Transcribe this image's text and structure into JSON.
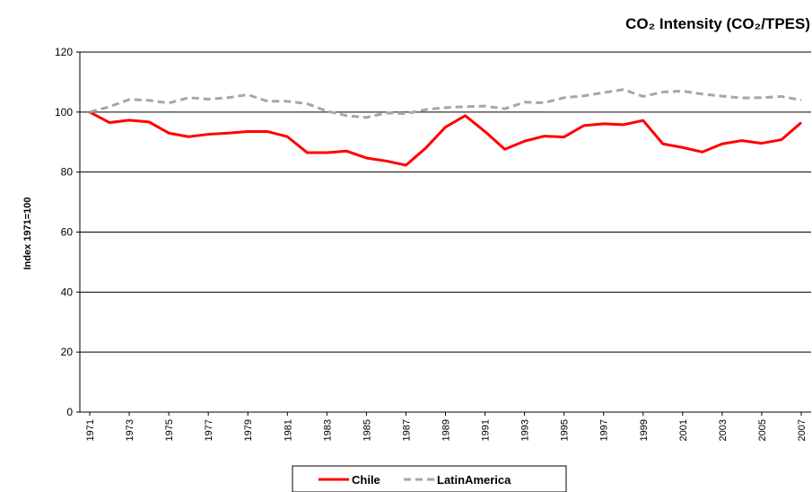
{
  "chart_data": {
    "type": "line",
    "title": "CO₂ Intensity (CO₂/TPES)",
    "y_label": "Index 1971=100",
    "x": [
      1971,
      1972,
      1973,
      1974,
      1975,
      1976,
      1977,
      1978,
      1979,
      1980,
      1981,
      1982,
      1983,
      1984,
      1985,
      1986,
      1987,
      1988,
      1989,
      1990,
      1991,
      1992,
      1993,
      1994,
      1995,
      1996,
      1997,
      1998,
      1999,
      2000,
      2001,
      2002,
      2003,
      2004,
      2005,
      2006,
      2007
    ],
    "series": [
      {
        "name": "Chile",
        "color": "#ff0000",
        "dash": false,
        "values": [
          100,
          96.5,
          97.3,
          96.7,
          93,
          91.8,
          92.6,
          93,
          93.5,
          93.5,
          91.8,
          86.5,
          86.5,
          87,
          84.7,
          83.7,
          82.3,
          88,
          95,
          98.8,
          93.5,
          87.6,
          90.3,
          92,
          91.7,
          95.5,
          96.1,
          95.8,
          97.2,
          89.4,
          88.2,
          86.7,
          89.4,
          90.5,
          89.6,
          90.8,
          96.5
        ]
      },
      {
        "name": "LatinAmerica",
        "color": "#a6a6a6",
        "dash": true,
        "values": [
          100,
          101.8,
          104.2,
          103.9,
          103,
          104.8,
          104.3,
          104.8,
          105.8,
          103.6,
          103.6,
          102.8,
          100.3,
          98.8,
          98.2,
          99.7,
          99.5,
          100.8,
          101.5,
          101.8,
          102,
          101.1,
          103.3,
          103.1,
          104.8,
          105.4,
          106.5,
          107.5,
          105.2,
          106.7,
          107,
          106,
          105.3,
          104.7,
          104.8,
          105.2,
          104
        ]
      }
    ],
    "xlim": [
      1970.5,
      2007.5
    ],
    "xticks": [
      1971,
      1973,
      1975,
      1977,
      1979,
      1981,
      1983,
      1985,
      1987,
      1989,
      1991,
      1993,
      1995,
      1997,
      1999,
      2001,
      2003,
      2005,
      2007
    ],
    "ylim": [
      0,
      120
    ],
    "yticks": [
      0,
      20,
      40,
      60,
      80,
      100,
      120
    ],
    "grid": true,
    "legend": "bottom"
  }
}
